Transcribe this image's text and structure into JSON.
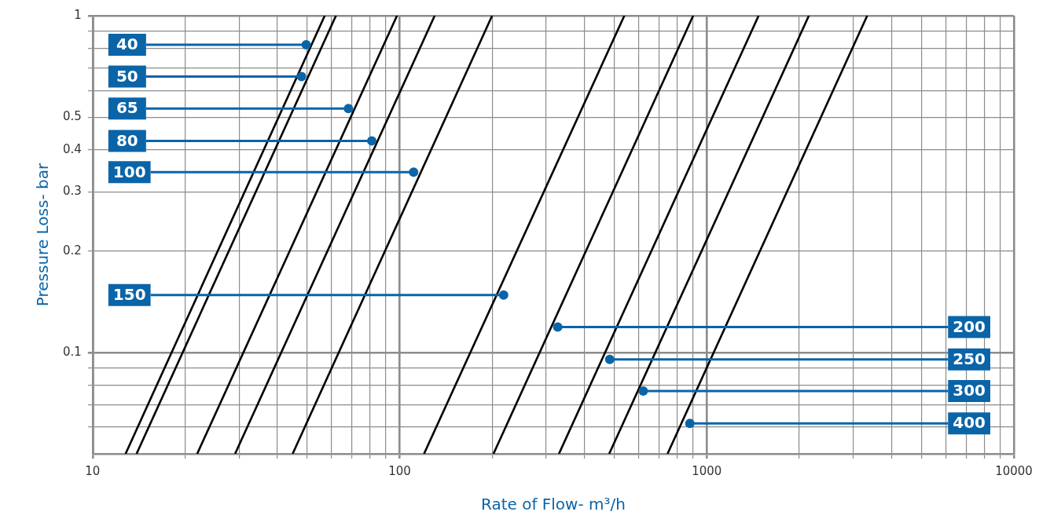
{
  "chart_data": {
    "type": "line",
    "xlabel": "Rate of Flow- m³/h",
    "ylabel": "Pressure Loss- bar",
    "log": "xy",
    "grid": true,
    "marker": "none",
    "line_style": "solid",
    "xlim": [
      10,
      10000
    ],
    "ylim": [
      0.05,
      1
    ],
    "xticks": [
      10,
      {
        "value": 20,
        "label": null
      },
      {
        "value": 30,
        "label": null
      },
      {
        "value": 40,
        "label": null
      },
      {
        "value": 50,
        "label": null
      },
      {
        "value": 60,
        "label": null
      },
      {
        "value": 70,
        "label": null
      },
      {
        "value": 80,
        "label": null
      },
      {
        "value": 90,
        "label": null
      },
      100,
      {
        "value": 200,
        "label": null
      },
      {
        "value": 300,
        "label": null
      },
      {
        "value": 400,
        "label": null
      },
      {
        "value": 500,
        "label": null
      },
      {
        "value": 600,
        "label": null
      },
      {
        "value": 700,
        "label": null
      },
      {
        "value": 800,
        "label": null
      },
      {
        "value": 900,
        "label": null
      },
      1000,
      {
        "value": 2000,
        "label": null
      },
      {
        "value": 3000,
        "label": null
      },
      {
        "value": 4000,
        "label": null
      },
      {
        "value": 5000,
        "label": null
      },
      {
        "value": 6000,
        "label": null
      },
      {
        "value": 7000,
        "label": null
      },
      {
        "value": 8000,
        "label": null
      },
      {
        "value": 9000,
        "label": null
      },
      10000
    ],
    "yticks": [
      {
        "value": 0.06,
        "label": null
      },
      {
        "value": 0.07,
        "label": null
      },
      {
        "value": 0.08,
        "label": null
      },
      {
        "value": 0.09,
        "label": null
      },
      0.1,
      0.2,
      0.3,
      0.4,
      0.5,
      {
        "value": 0.6,
        "label": null
      },
      {
        "value": 0.7,
        "label": null
      },
      {
        "value": 0.8,
        "label": null
      },
      {
        "value": 0.9,
        "label": null
      },
      1
    ],
    "series": [
      {
        "color": "#000000",
        "x": [
          12.8,
          57
        ],
        "values": [
          0.05,
          1
        ]
      },
      {
        "color": "#000000",
        "x": [
          13.9,
          62
        ],
        "values": [
          0.05,
          1
        ]
      },
      {
        "color": "#000000",
        "x": [
          21.9,
          98
        ],
        "values": [
          0.05,
          1
        ]
      },
      {
        "color": "#000000",
        "x": [
          29.1,
          130
        ],
        "values": [
          0.05,
          1
        ]
      },
      {
        "color": "#000000",
        "x": [
          44.8,
          200
        ],
        "values": [
          0.05,
          1
        ]
      },
      {
        "color": "#000000",
        "x": [
          120,
          539
        ],
        "values": [
          0.05,
          1
        ]
      },
      {
        "color": "#000000",
        "x": [
          202,
          903
        ],
        "values": [
          0.05,
          1
        ]
      },
      {
        "color": "#000000",
        "x": [
          330,
          1475
        ],
        "values": [
          0.05,
          1
        ]
      },
      {
        "color": "#000000",
        "x": [
          481,
          2150
        ],
        "values": [
          0.05,
          1
        ]
      },
      {
        "color": "#000000",
        "x": [
          745,
          3330
        ],
        "values": [
          0.05,
          1
        ]
      }
    ],
    "annotations": [
      {
        "text": "40",
        "x": 49.6,
        "y": 0.82
      },
      {
        "text": "50",
        "x": 47.9,
        "y": 0.66
      },
      {
        "text": "65",
        "x": 68.1,
        "y": 0.53
      },
      {
        "text": "80",
        "x": 81.1,
        "y": 0.425
      },
      {
        "text": "100",
        "x": 111,
        "y": 0.343
      },
      {
        "text": "150",
        "x": 218,
        "y": 0.148
      },
      {
        "text": "200",
        "x": 327,
        "y": 0.119
      },
      {
        "text": "250",
        "x": 483,
        "y": 0.0953
      },
      {
        "text": "300",
        "x": 621,
        "y": 0.0768
      },
      {
        "text": "400",
        "x": 881,
        "y": 0.0616
      }
    ]
  }
}
